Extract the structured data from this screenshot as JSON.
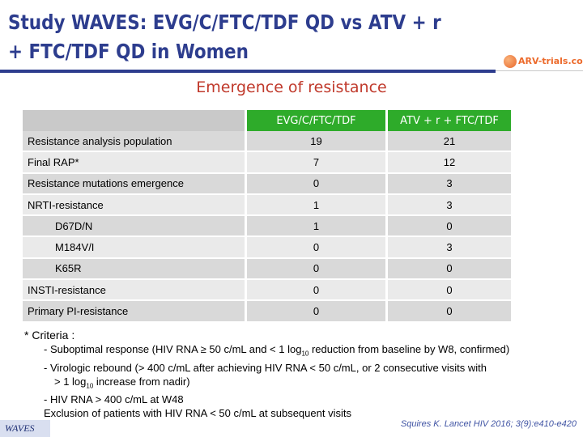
{
  "title_line1": "Study WAVES: EVG/C/FTC/TDF QD vs ATV + r",
  "title_line2": "+ FTC/TDF QD in Women",
  "logo": {
    "text": "ARV-trials.com",
    "color": "#ec6a2b"
  },
  "subtitle": "Emergence of resistance",
  "colors": {
    "accent": "#2d3d8e",
    "header_green": "#2eab2a",
    "subtitle_red": "#c0392b"
  },
  "table": {
    "columns": [
      "EVG/C/FTC/TDF",
      "ATV + r + FTC/TDF"
    ],
    "rows": [
      {
        "label": "Resistance analysis population",
        "indent": false,
        "values": [
          "19",
          "21"
        ]
      },
      {
        "label": "Final RAP*",
        "indent": false,
        "values": [
          "7",
          "12"
        ]
      },
      {
        "label": "Resistance mutations emergence",
        "indent": false,
        "values": [
          "0",
          "3"
        ]
      },
      {
        "label": "NRTI-resistance",
        "indent": false,
        "values": [
          "1",
          "3"
        ]
      },
      {
        "label": "D67D/N",
        "indent": true,
        "values": [
          "1",
          "0"
        ]
      },
      {
        "label": "M184V/I",
        "indent": true,
        "values": [
          "0",
          "3"
        ]
      },
      {
        "label": "K65R",
        "indent": true,
        "values": [
          "0",
          "0"
        ]
      },
      {
        "label": "INSTI-resistance",
        "indent": false,
        "values": [
          "0",
          "0"
        ]
      },
      {
        "label": "Primary PI-resistance",
        "indent": false,
        "values": [
          "0",
          "0"
        ]
      }
    ]
  },
  "notes": {
    "criteria": "* Criteria :",
    "item1_a": "- Suboptimal response (HIV RNA ≥ 50 c/mL and < 1 log",
    "item1_sub": "10",
    "item1_b": " reduction from baseline by W8, confirmed)",
    "item2_a": "- Virologic rebound (> 400 c/mL after achieving HIV RNA < 50 c/mL, or 2 consecutive visits with",
    "item2_b": "> 1 log",
    "item2_sub": "10",
    "item2_c": " increase from nadir)",
    "item3": "- HIV RNA > 400 c/mL at W48",
    "exclusion": "Exclusion of patients with HIV RNA < 50 c/mL at subsequent visits"
  },
  "footer": {
    "study_tag": "WAVES",
    "citation": "Squires K. Lancet HIV 2016; 3(9):e410-e420"
  }
}
